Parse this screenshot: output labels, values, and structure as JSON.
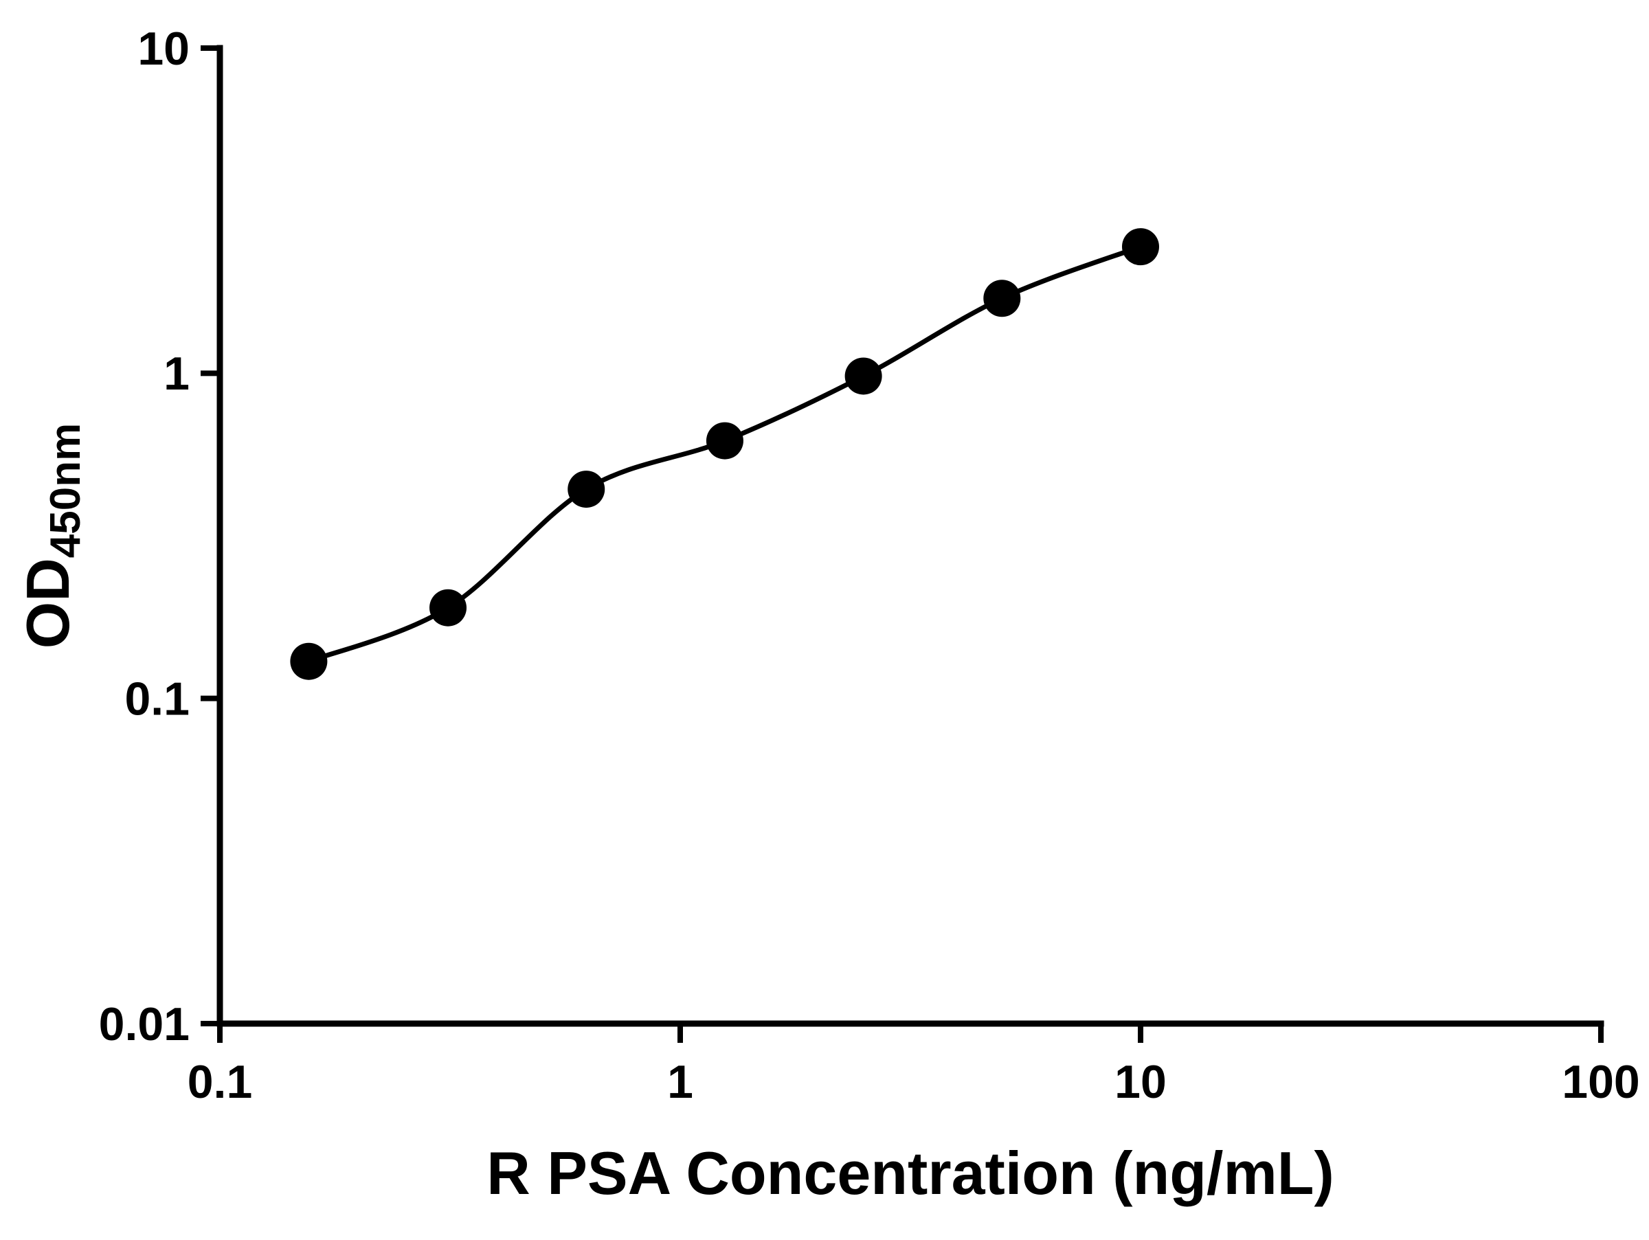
{
  "chart_data": {
    "type": "scatter",
    "has_fit_line": true,
    "x": [
      0.156,
      0.313,
      0.625,
      1.25,
      2.5,
      5,
      10
    ],
    "y": [
      0.13,
      0.19,
      0.44,
      0.62,
      0.98,
      1.7,
      2.45
    ],
    "title": "",
    "xlabel": "R PSA Concentration (ng/mL)",
    "ylabel_main": "OD",
    "ylabel_sub": "450nm",
    "xscale": "log",
    "yscale": "log",
    "xlim": [
      0.1,
      100
    ],
    "ylim": [
      0.01,
      10
    ],
    "x_ticks": [
      {
        "value": 0.1,
        "label": "0.1"
      },
      {
        "value": 1,
        "label": "1"
      },
      {
        "value": 10,
        "label": "10"
      },
      {
        "value": 100,
        "label": "100"
      }
    ],
    "y_ticks": [
      {
        "value": 0.01,
        "label": "0.01"
      },
      {
        "value": 0.1,
        "label": "0.1"
      },
      {
        "value": 1,
        "label": "1"
      },
      {
        "value": 10,
        "label": "10"
      }
    ],
    "grid": false,
    "legend": false,
    "marker_color": "#000000",
    "line_color": "#000000",
    "axis_color": "#000000",
    "background": "#ffffff"
  }
}
